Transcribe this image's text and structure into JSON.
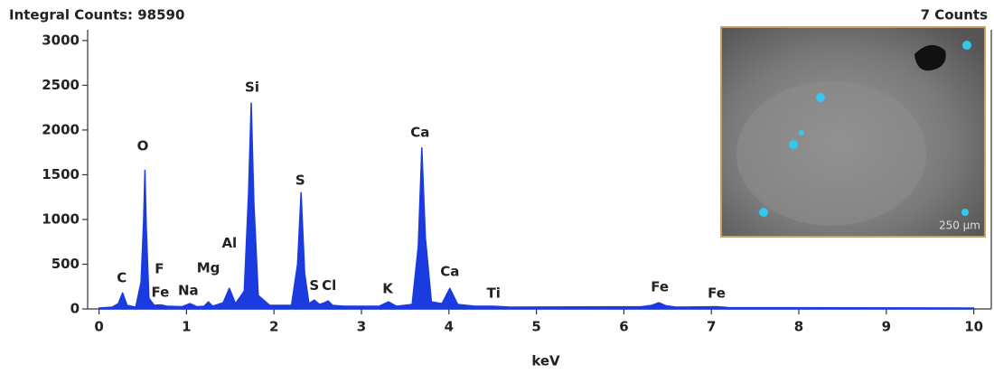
{
  "chart_data": {
    "type": "area",
    "title": "Integral Counts: 98590",
    "subtitle": "7 Counts",
    "x_label": "keV",
    "color": "#1a3be0",
    "xlim": [
      -0.13,
      10.2
    ],
    "xticks": [
      0,
      1,
      2,
      3,
      4,
      5,
      6,
      7,
      8,
      9,
      10
    ],
    "ylim": [
      0,
      3120
    ],
    "yticks": [
      0,
      500,
      1000,
      1500,
      2000,
      2500,
      3000
    ],
    "x": [
      0,
      0.15,
      0.22,
      0.27,
      0.32,
      0.42,
      0.48,
      0.51,
      0.525,
      0.54,
      0.57,
      0.63,
      0.7,
      0.78,
      0.95,
      1.04,
      1.12,
      1.2,
      1.25,
      1.3,
      1.42,
      1.49,
      1.56,
      1.66,
      1.71,
      1.74,
      1.77,
      1.82,
      1.95,
      2.2,
      2.27,
      2.31,
      2.35,
      2.4,
      2.46,
      2.52,
      2.58,
      2.62,
      2.67,
      2.8,
      3.2,
      3.31,
      3.4,
      3.58,
      3.65,
      3.69,
      3.73,
      3.8,
      3.92,
      4.01,
      4.1,
      4.3,
      4.51,
      4.7,
      6.2,
      6.32,
      6.4,
      6.48,
      6.6,
      7.06,
      7.2,
      10
    ],
    "values": [
      10,
      20,
      60,
      180,
      40,
      20,
      300,
      1000,
      1550,
      900,
      120,
      40,
      45,
      30,
      25,
      60,
      25,
      30,
      80,
      30,
      70,
      230,
      60,
      200,
      1300,
      2300,
      1200,
      150,
      40,
      40,
      500,
      1300,
      400,
      60,
      100,
      50,
      70,
      90,
      40,
      30,
      30,
      80,
      30,
      50,
      700,
      1800,
      800,
      80,
      60,
      230,
      50,
      30,
      30,
      20,
      25,
      40,
      70,
      35,
      20,
      25,
      15,
      10
    ],
    "annotations": [
      {
        "text": "C",
        "x": 0.26,
        "y": 343
      },
      {
        "text": "O",
        "x": 0.5,
        "y": 1820
      },
      {
        "text": "F",
        "x": 0.69,
        "y": 445
      },
      {
        "text": "Fe",
        "x": 0.7,
        "y": 180
      },
      {
        "text": "Na",
        "x": 1.02,
        "y": 200
      },
      {
        "text": "Mg",
        "x": 1.25,
        "y": 455
      },
      {
        "text": "Al",
        "x": 1.49,
        "y": 730
      },
      {
        "text": "Si",
        "x": 1.75,
        "y": 2475
      },
      {
        "text": "S",
        "x": 2.3,
        "y": 1435
      },
      {
        "text": "S",
        "x": 2.46,
        "y": 260
      },
      {
        "text": "Cl",
        "x": 2.63,
        "y": 260
      },
      {
        "text": "K",
        "x": 3.3,
        "y": 220
      },
      {
        "text": "Ca",
        "x": 3.67,
        "y": 1970
      },
      {
        "text": "Ca",
        "x": 4.01,
        "y": 415
      },
      {
        "text": "Ti",
        "x": 4.51,
        "y": 170
      },
      {
        "text": "Fe",
        "x": 6.41,
        "y": 240
      },
      {
        "text": "Fe",
        "x": 7.06,
        "y": 170
      }
    ],
    "inset": {
      "scale_bar": "250 µm"
    }
  }
}
